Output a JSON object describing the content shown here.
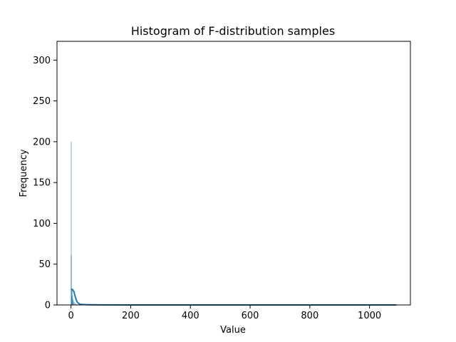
{
  "chart_data": {
    "type": "bar",
    "title": "Histogram of F-distribution samples",
    "xlabel": "Value",
    "ylabel": "Frequency",
    "xlim": [
      -47,
      1137
    ],
    "ylim": [
      0,
      323
    ],
    "x_ticks": [
      0,
      200,
      400,
      600,
      800,
      1000
    ],
    "y_ticks": [
      0,
      50,
      100,
      150,
      200,
      250,
      300
    ],
    "grid": false,
    "colors": {
      "bars": "#1f77b4",
      "kde": "#1f77b4"
    },
    "bins": [
      {
        "x": 0.3,
        "value": 200
      },
      {
        "x": 0.8,
        "value": 61
      },
      {
        "x": 1.4,
        "value": 18
      },
      {
        "x": 2.0,
        "value": 10
      },
      {
        "x": 2.8,
        "value": 6
      },
      {
        "x": 3.6,
        "value": 20
      },
      {
        "x": 4.4,
        "value": 12
      },
      {
        "x": 5.5,
        "value": 8
      },
      {
        "x": 7.0,
        "value": 6
      },
      {
        "x": 9.0,
        "value": 4
      },
      {
        "x": 12.0,
        "value": 3
      },
      {
        "x": 16.0,
        "value": 2
      },
      {
        "x": 22.0,
        "value": 1
      },
      {
        "x": 30.0,
        "value": 1
      },
      {
        "x": 45.0,
        "value": 1
      }
    ],
    "kde": {
      "x": [
        0,
        5,
        10,
        15,
        20,
        25,
        30,
        40,
        60,
        100,
        200,
        400,
        600,
        800,
        1000,
        1090
      ],
      "y": [
        19,
        19,
        16,
        9,
        4,
        2,
        1,
        0.5,
        0.2,
        0.1,
        0,
        0,
        0,
        0,
        0,
        0
      ]
    }
  }
}
